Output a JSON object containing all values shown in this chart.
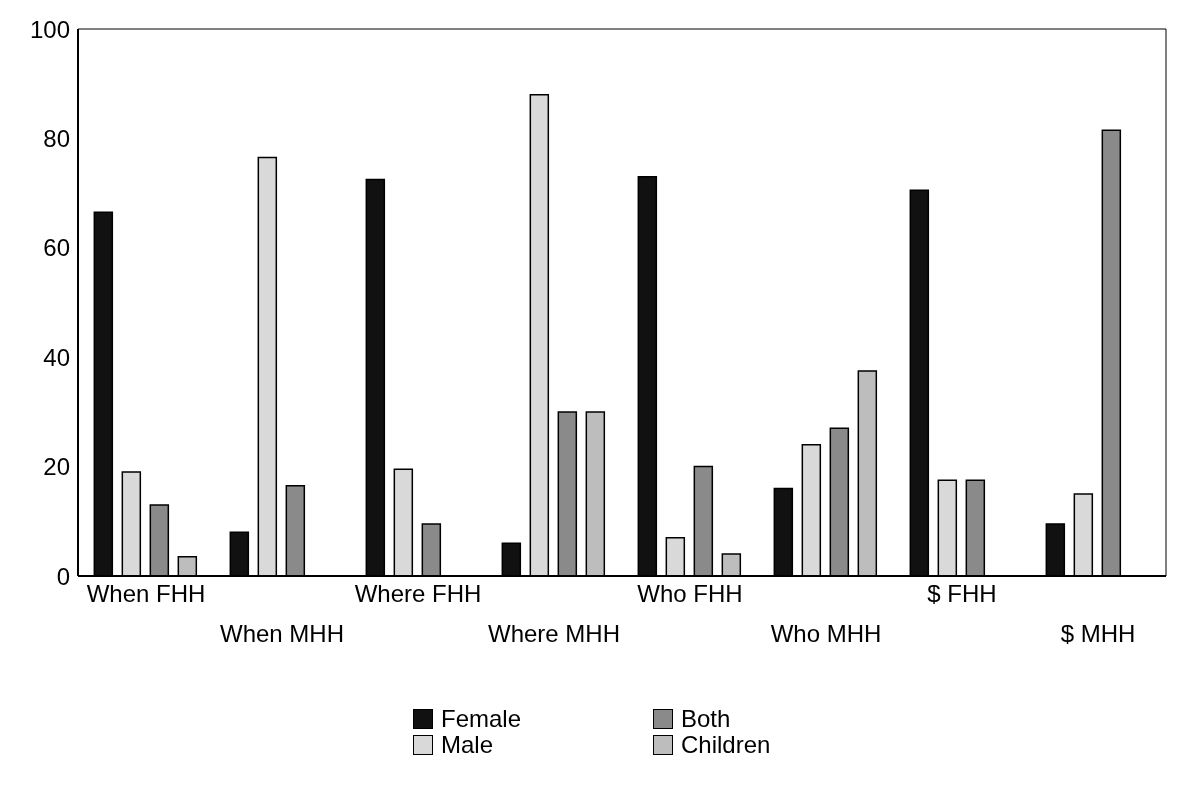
{
  "chart_data": {
    "type": "bar",
    "categories": [
      "When FHH",
      "When MHH",
      "Where FHH",
      "Where MHH",
      "Who FHH",
      "Who MHH",
      "$ FHH",
      "$ MHH"
    ],
    "series": [
      {
        "name": "Female",
        "color": "#111111",
        "values": [
          66.5,
          8,
          72.5,
          6,
          73,
          16,
          70.5,
          9.5
        ]
      },
      {
        "name": "Male",
        "color": "#d9d9d9",
        "values": [
          19,
          76.5,
          19.5,
          88,
          7,
          24,
          17.5,
          15
        ]
      },
      {
        "name": "Both",
        "color": "#8a8a8a",
        "values": [
          13,
          16.5,
          9.5,
          30,
          20,
          27,
          17.5,
          81.5
        ]
      },
      {
        "name": "Children",
        "color": "#bdbdbd",
        "values": [
          3.5,
          null,
          null,
          30,
          4,
          37.5,
          null,
          null
        ]
      }
    ],
    "ylim": [
      0,
      100
    ],
    "yticks": [
      0,
      20,
      40,
      60,
      80,
      100
    ],
    "grid": false,
    "legend": "bottom"
  }
}
